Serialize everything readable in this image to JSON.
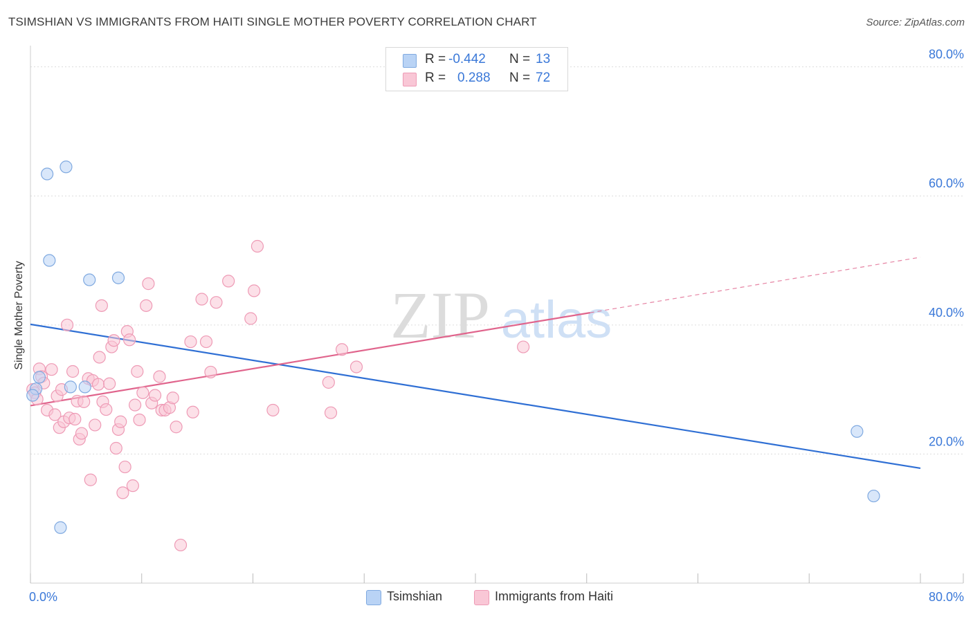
{
  "title": "TSIMSHIAN VS IMMIGRANTS FROM HAITI SINGLE MOTHER POVERTY CORRELATION CHART",
  "source": "Source: ZipAtlas.com",
  "watermark": {
    "zip": "ZIP",
    "atlas": "atlas"
  },
  "legend": {
    "r_label": "R =",
    "n_label": "N =",
    "rows": [
      {
        "r": "-0.442",
        "n": "13",
        "fill": "#b9d3f5",
        "stroke": "#7fa9e0"
      },
      {
        "r": "0.288",
        "n": "72",
        "fill": "#f9c7d6",
        "stroke": "#ee9ab5"
      }
    ]
  },
  "chart_data": {
    "type": "scatter",
    "title": "TSIMSHIAN VS IMMIGRANTS FROM HAITI SINGLE MOTHER POVERTY CORRELATION CHART",
    "xlabel": "",
    "ylabel": "Single Mother Poverty",
    "xlim": [
      0,
      80
    ],
    "ylim": [
      0,
      82
    ],
    "x_tick_labels": [
      "0.0%",
      "80.0%"
    ],
    "y_ticks": [
      20,
      40,
      60,
      80
    ],
    "y_tick_labels": [
      "20.0%",
      "40.0%",
      "60.0%",
      "80.0%"
    ],
    "grid": true,
    "series": [
      {
        "name": "Tsimshian",
        "color": "#7fa9e0",
        "fill": "#b9d3f5",
        "line_color": "#2f6fd4",
        "points": [
          [
            1.5,
            63.4
          ],
          [
            3.2,
            64.5
          ],
          [
            1.7,
            50.0
          ],
          [
            5.3,
            47.0
          ],
          [
            7.9,
            47.3
          ],
          [
            0.8,
            31.9
          ],
          [
            0.5,
            30.1
          ],
          [
            0.2,
            29.1
          ],
          [
            3.6,
            30.4
          ],
          [
            4.9,
            30.4
          ],
          [
            2.7,
            8.6
          ],
          [
            74.3,
            23.5
          ],
          [
            75.8,
            13.5
          ]
        ],
        "trend": {
          "x": [
            0,
            80
          ],
          "y": [
            40.1,
            17.8
          ]
        }
      },
      {
        "name": "Immigrants from Haiti",
        "color": "#ee9ab5",
        "fill": "#f9c7d6",
        "line_color": "#e0648c",
        "points": [
          [
            0.2,
            30.0
          ],
          [
            0.4,
            29.5
          ],
          [
            0.6,
            28.5
          ],
          [
            0.8,
            33.2
          ],
          [
            1.0,
            32.0
          ],
          [
            1.2,
            31.0
          ],
          [
            1.5,
            26.8
          ],
          [
            1.9,
            33.1
          ],
          [
            2.2,
            26.1
          ],
          [
            2.4,
            29.0
          ],
          [
            2.6,
            24.1
          ],
          [
            2.8,
            30.0
          ],
          [
            3.0,
            25.0
          ],
          [
            3.3,
            40.0
          ],
          [
            3.5,
            25.6
          ],
          [
            3.8,
            32.8
          ],
          [
            4.0,
            25.4
          ],
          [
            4.2,
            28.2
          ],
          [
            4.4,
            22.3
          ],
          [
            4.6,
            23.2
          ],
          [
            4.8,
            28.1
          ],
          [
            5.2,
            31.7
          ],
          [
            5.4,
            16.0
          ],
          [
            5.6,
            31.4
          ],
          [
            5.8,
            24.5
          ],
          [
            6.1,
            30.8
          ],
          [
            6.2,
            35.0
          ],
          [
            6.4,
            43.0
          ],
          [
            6.5,
            28.1
          ],
          [
            6.8,
            26.9
          ],
          [
            7.1,
            30.9
          ],
          [
            7.3,
            36.6
          ],
          [
            7.5,
            37.6
          ],
          [
            7.7,
            20.9
          ],
          [
            7.9,
            23.8
          ],
          [
            8.1,
            25.0
          ],
          [
            8.3,
            14.0
          ],
          [
            8.5,
            18.0
          ],
          [
            8.7,
            39.0
          ],
          [
            8.9,
            37.7
          ],
          [
            9.2,
            15.1
          ],
          [
            9.4,
            27.6
          ],
          [
            9.6,
            32.8
          ],
          [
            9.8,
            25.3
          ],
          [
            10.1,
            29.5
          ],
          [
            10.4,
            43.0
          ],
          [
            10.6,
            46.4
          ],
          [
            10.9,
            27.9
          ],
          [
            11.2,
            29.1
          ],
          [
            11.6,
            32.0
          ],
          [
            11.8,
            26.8
          ],
          [
            12.1,
            26.8
          ],
          [
            12.5,
            27.2
          ],
          [
            12.8,
            28.7
          ],
          [
            13.1,
            24.2
          ],
          [
            13.5,
            5.9
          ],
          [
            14.4,
            37.4
          ],
          [
            14.6,
            26.5
          ],
          [
            15.4,
            44.0
          ],
          [
            15.8,
            37.4
          ],
          [
            16.2,
            32.7
          ],
          [
            16.7,
            43.5
          ],
          [
            17.8,
            46.8
          ],
          [
            19.8,
            41.0
          ],
          [
            20.1,
            45.3
          ],
          [
            20.4,
            52.2
          ],
          [
            21.8,
            26.8
          ],
          [
            26.8,
            31.1
          ],
          [
            27.0,
            26.4
          ],
          [
            28.0,
            36.2
          ],
          [
            29.3,
            33.5
          ],
          [
            44.3,
            36.6
          ]
        ],
        "trend": {
          "x": [
            0,
            50.3
          ],
          "y": [
            27.5,
            41.9
          ],
          "dashed_x": [
            50.3,
            80
          ],
          "dashed_y": [
            41.9,
            50.5
          ]
        }
      }
    ]
  }
}
